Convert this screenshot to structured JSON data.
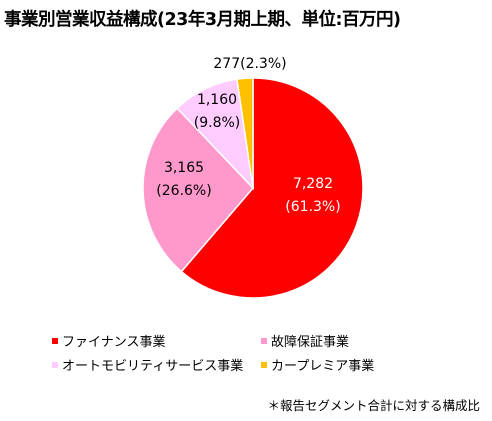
{
  "chart_data": {
    "type": "pie",
    "title": "事業別営業収益構成(23年3月期上期、単位:百万円)",
    "slices": [
      {
        "name": "ファイナンス事業",
        "value": 7282,
        "value_label": "7,282",
        "pct_label": "(61.3%)",
        "color": "#ff0000",
        "label_color": "#ffffff"
      },
      {
        "name": "故障保証事業",
        "value": 3165,
        "value_label": "3,165",
        "pct_label": "(26.6%)",
        "color": "#ff99cc",
        "label_color": "#000000"
      },
      {
        "name": "オートモビリティサービス事業",
        "value": 1160,
        "value_label": "1,160",
        "pct_label": "(9.8%)",
        "color": "#ffccff",
        "label_color": "#000000"
      },
      {
        "name": "カープレミア事業",
        "value": 277,
        "value_label": "277(2.3%)",
        "pct_label": "",
        "color": "#ffc000",
        "label_color": "#000000"
      }
    ],
    "legend": "bottom"
  },
  "footnote": "＊報告セグメント合計に対する構成比"
}
